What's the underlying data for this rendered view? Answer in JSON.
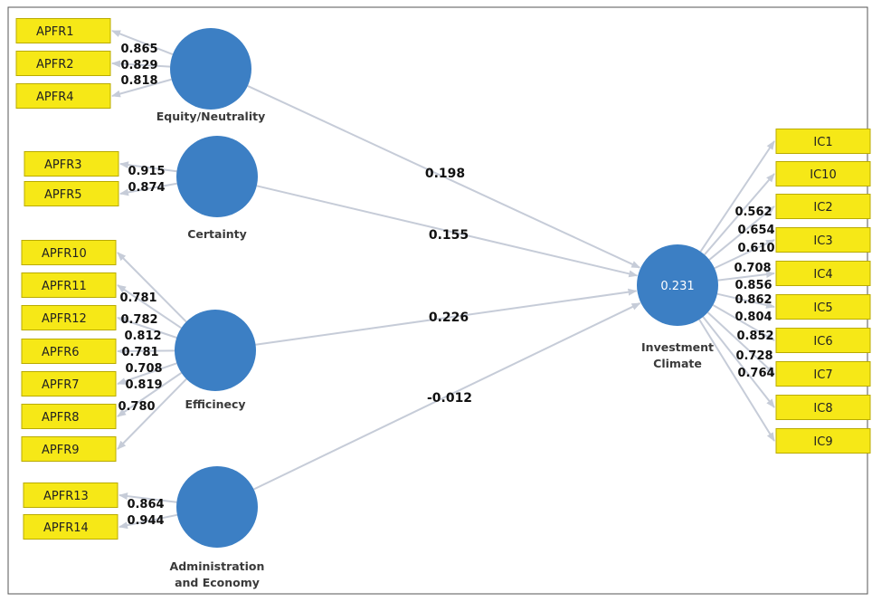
{
  "colors": {
    "construct": "#3c7fc4",
    "indicator": "#f6e817",
    "arrow": "#c6ccd8"
  },
  "constructs": [
    {
      "id": "equity",
      "label": [
        "Equity/Neutrality"
      ],
      "indicators": [
        {
          "name": "APFR1",
          "loading": "0.865"
        },
        {
          "name": "APFR2",
          "loading": "0.829"
        },
        {
          "name": "APFR4",
          "loading": "0.818"
        }
      ],
      "path_coefficient": "0.198"
    },
    {
      "id": "certainty",
      "label": [
        "Certainty"
      ],
      "indicators": [
        {
          "name": "APFR3",
          "loading": "0.915"
        },
        {
          "name": "APFR5",
          "loading": "0.874"
        }
      ],
      "path_coefficient": "0.155"
    },
    {
      "id": "efficiency",
      "label": [
        "Efficinecy"
      ],
      "indicators": [
        {
          "name": "APFR10",
          "loading": "0.781"
        },
        {
          "name": "APFR11",
          "loading": "0.782"
        },
        {
          "name": "APFR12",
          "loading": "0.812"
        },
        {
          "name": "APFR6",
          "loading": "0.781"
        },
        {
          "name": "APFR7",
          "loading": "0.708"
        },
        {
          "name": "APFR8",
          "loading": "0.819"
        },
        {
          "name": "APFR9",
          "loading": "0.780"
        }
      ],
      "path_coefficient": "0.226"
    },
    {
      "id": "administration",
      "label": [
        "Administration",
        "and Economy"
      ],
      "indicators": [
        {
          "name": "APFR13",
          "loading": "0.864"
        },
        {
          "name": "APFR14",
          "loading": "0.944"
        }
      ],
      "path_coefficient": "-0.012"
    }
  ],
  "target": {
    "id": "investment-climate",
    "label": [
      "Investment",
      "Climate"
    ],
    "r_squared": "0.231",
    "indicators": [
      {
        "name": "IC1",
        "loading": "0.562"
      },
      {
        "name": "IC10",
        "loading": "0.654"
      },
      {
        "name": "IC2",
        "loading": "0.610"
      },
      {
        "name": "IC3",
        "loading": "0.708"
      },
      {
        "name": "IC4",
        "loading": "0.856"
      },
      {
        "name": "IC5",
        "loading": "0.862"
      },
      {
        "name": "IC6",
        "loading": "0.804"
      },
      {
        "name": "IC7",
        "loading": "0.852"
      },
      {
        "name": "IC8",
        "loading": "0.728"
      },
      {
        "name": "IC9",
        "loading": "0.764"
      }
    ]
  }
}
